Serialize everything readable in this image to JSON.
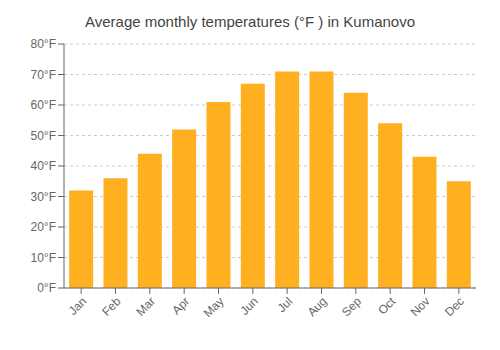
{
  "chart_data": {
    "type": "bar",
    "title": "Average monthly temperatures (°F ) in Kumanovo",
    "categories": [
      "Jan",
      "Feb",
      "Mar",
      "Apr",
      "May",
      "Jun",
      "Jul",
      "Aug",
      "Sep",
      "Oct",
      "Nov",
      "Dec"
    ],
    "values": [
      32,
      36,
      44,
      52,
      61,
      67,
      71,
      71,
      64,
      54,
      43,
      35
    ],
    "color": "#FFB020",
    "ylim": [
      0,
      80
    ],
    "yticks": [
      {
        "value": 0,
        "label": "0°F"
      },
      {
        "value": 10,
        "label": "10°F"
      },
      {
        "value": 20,
        "label": "20°F"
      },
      {
        "value": 30,
        "label": "30°F"
      },
      {
        "value": 40,
        "label": "40°F"
      },
      {
        "value": 50,
        "label": "50°F"
      },
      {
        "value": 60,
        "label": "60°F"
      },
      {
        "value": 70,
        "label": "70°F"
      },
      {
        "value": 80,
        "label": "80°F"
      }
    ],
    "grid": true
  }
}
